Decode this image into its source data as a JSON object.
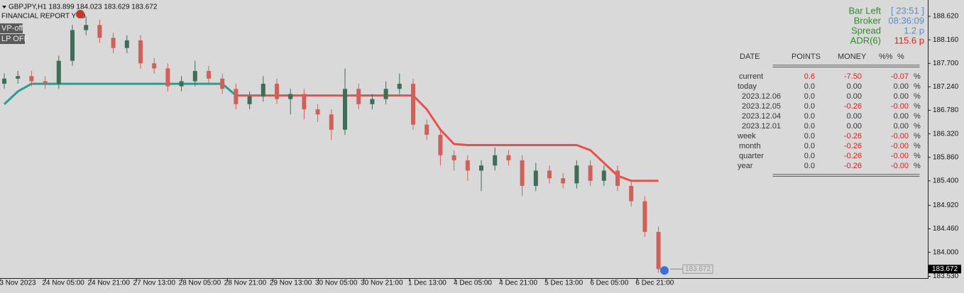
{
  "header": {
    "symbol_line": "GBPJPY,H1  183.899 184.023 183.629 183.672",
    "indicator": "FINANCIAL REPORT YTD",
    "buttons": [
      "VP-off",
      "LP OFF"
    ]
  },
  "info": [
    {
      "label": "Bar Left",
      "value": "[ 23:51 ]"
    },
    {
      "label": "Broker",
      "value": "08:36:09"
    },
    {
      "label": "Spread",
      "value": "1.2 p"
    },
    {
      "label": "ADR(6)",
      "value": "115.6 p"
    }
  ],
  "report": {
    "columns": [
      "DATE",
      "POINTS",
      "MONEY",
      "%%",
      "%"
    ],
    "separator": "========================================",
    "rows": [
      [
        "current",
        "0.6",
        "-7.50",
        "-0.07",
        "%"
      ],
      [
        "today",
        "0.0",
        "0.00",
        "0.00",
        "%"
      ],
      [
        "2023.12.06",
        "0.0",
        "0.00",
        "0.00",
        "%"
      ],
      [
        "2023.12.05",
        "0.0",
        "-0.26",
        "-0.00",
        "%"
      ],
      [
        "2023.12.04",
        "0.0",
        "0.00",
        "0.00",
        "%"
      ],
      [
        "2023.12.01",
        "0.0",
        "0.00",
        "0.00",
        "%"
      ],
      [
        "week",
        "0.0",
        "-0.26",
        "-0.00",
        "%"
      ],
      [
        "month",
        "0.0",
        "-0.26",
        "-0.00",
        "%"
      ],
      [
        "quarter",
        "0.0",
        "-0.26",
        "-0.00",
        "%"
      ],
      [
        "year",
        "0.0",
        "-0.26",
        "-0.00",
        "%"
      ]
    ]
  },
  "chart_data": {
    "type": "candlestick",
    "x_labels": [
      "3 Nov 2023",
      "24 Nov 05:00",
      "24 Nov 21:00",
      "27 Nov 13:00",
      "28 Nov 05:00",
      "28 Nov 21:00",
      "29 Nov 13:00",
      "30 Nov 05:00",
      "30 Nov 21:00",
      "1 Dec 13:00",
      "4 Dec 05:00",
      "4 Dec 21:00",
      "5 Dec 13:00",
      "6 Dec 05:00",
      "6 Dec 21:00"
    ],
    "open": [
      187.3,
      187.4,
      187.45,
      187.35,
      187.3,
      187.75,
      188.35,
      188.45,
      188.2,
      188.0,
      188.15,
      187.7,
      187.6,
      187.25,
      187.35,
      187.55,
      187.4,
      187.2,
      186.9,
      187.05,
      187.3,
      187.0,
      187.1,
      186.8,
      186.7,
      186.4,
      187.2,
      186.9,
      187.0,
      187.2,
      187.3,
      186.5,
      186.3,
      185.9,
      185.8,
      185.6,
      185.7,
      185.9,
      185.8,
      185.3,
      185.6,
      185.45,
      185.35,
      185.7,
      185.4,
      185.6,
      185.3,
      185.0,
      184.4
    ],
    "high": [
      187.5,
      187.55,
      187.55,
      187.45,
      187.85,
      188.45,
      188.62,
      188.55,
      188.3,
      188.25,
      188.25,
      187.8,
      187.7,
      187.45,
      187.75,
      187.65,
      187.5,
      187.3,
      187.15,
      187.45,
      187.4,
      187.2,
      187.2,
      186.9,
      186.8,
      187.6,
      187.3,
      187.1,
      187.35,
      187.5,
      187.4,
      186.6,
      186.4,
      186.0,
      185.9,
      185.8,
      186.05,
      186.0,
      185.9,
      185.75,
      185.7,
      185.55,
      185.8,
      185.8,
      185.7,
      185.7,
      185.4,
      185.1,
      184.5
    ],
    "low": [
      187.2,
      187.3,
      187.25,
      187.2,
      187.2,
      187.65,
      188.25,
      188.1,
      187.9,
      187.9,
      187.6,
      187.5,
      187.15,
      187.15,
      187.25,
      187.3,
      187.1,
      186.8,
      186.8,
      186.95,
      186.9,
      186.7,
      186.6,
      186.55,
      186.2,
      186.3,
      186.8,
      186.8,
      186.9,
      187.1,
      186.4,
      186.2,
      185.7,
      185.6,
      185.4,
      185.2,
      185.6,
      185.7,
      185.1,
      185.2,
      185.35,
      185.25,
      185.25,
      185.3,
      185.3,
      185.2,
      184.9,
      184.3,
      183.6
    ],
    "close": [
      187.4,
      187.45,
      187.35,
      187.3,
      187.75,
      188.35,
      188.45,
      188.2,
      188.0,
      188.15,
      187.7,
      187.6,
      187.25,
      187.35,
      187.55,
      187.4,
      187.2,
      186.9,
      187.05,
      187.3,
      187.0,
      187.1,
      186.8,
      186.7,
      186.4,
      187.2,
      186.9,
      187.0,
      187.2,
      187.3,
      186.5,
      186.3,
      185.9,
      185.8,
      185.6,
      185.7,
      185.9,
      185.8,
      185.3,
      185.6,
      185.45,
      185.35,
      185.7,
      185.4,
      185.6,
      185.3,
      185.0,
      184.4,
      183.672
    ],
    "up_color": "#3f6e58",
    "down_color": "#d0605a",
    "trend_lines": [
      {
        "color": "#2a9d8f",
        "values": [
          186.9,
          187.15,
          187.3,
          187.3,
          187.3,
          187.3,
          187.3,
          187.3,
          187.3,
          187.3,
          187.3,
          187.3,
          187.3,
          187.3,
          187.3,
          187.3,
          187.3,
          187.07,
          null,
          null,
          null,
          null,
          null,
          null,
          null,
          null,
          null,
          null,
          null,
          null,
          null,
          null,
          null,
          null,
          null,
          null,
          null,
          null,
          null,
          null,
          null,
          null,
          null,
          null,
          null,
          null,
          null,
          null,
          null
        ]
      },
      {
        "color": "#e8504a",
        "values": [
          null,
          null,
          null,
          null,
          null,
          null,
          null,
          null,
          null,
          null,
          null,
          null,
          null,
          null,
          null,
          null,
          null,
          187.07,
          187.07,
          187.07,
          187.07,
          187.07,
          187.07,
          187.07,
          187.07,
          187.07,
          187.07,
          187.07,
          187.07,
          187.07,
          187.07,
          186.8,
          186.4,
          186.12,
          186.1,
          186.1,
          186.1,
          186.1,
          186.1,
          186.1,
          186.1,
          186.1,
          186.1,
          186.0,
          185.75,
          185.5,
          185.4,
          185.4,
          185.4
        ]
      }
    ],
    "ylim": [
      183.495,
      188.94
    ],
    "yticks": [
      {
        "value": 188.62,
        "label": "188.620"
      },
      {
        "value": 188.16,
        "label": "188.160"
      },
      {
        "value": 187.7,
        "label": "187.700"
      },
      {
        "value": 187.24,
        "label": "187.240"
      },
      {
        "value": 186.78,
        "label": "186.780"
      },
      {
        "value": 186.32,
        "label": "186.320"
      },
      {
        "value": 185.86,
        "label": "185.860"
      },
      {
        "value": 185.4,
        "label": "185.400"
      },
      {
        "value": 184.92,
        "label": "184.920"
      },
      {
        "value": 184.46,
        "label": "184.460"
      },
      {
        "value": 184.0,
        "label": "184.000"
      },
      {
        "value": 183.53,
        "label": "183.530"
      }
    ],
    "last_price_label": "183.672"
  }
}
